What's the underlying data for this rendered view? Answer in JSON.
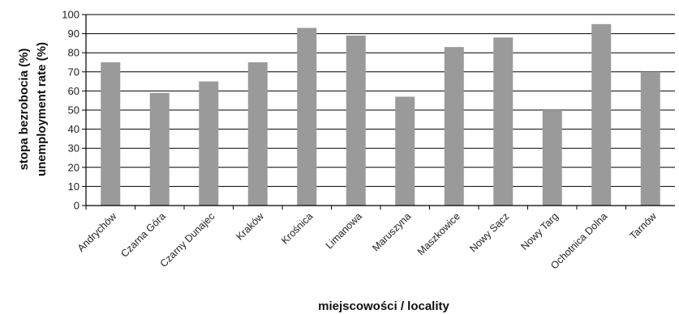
{
  "chart_data": {
    "type": "bar",
    "categories": [
      "Andrychów",
      "Czarna Góra",
      "Czarny Dunajec",
      "Kraków",
      "Krośnica",
      "Limanowa",
      "Maruszyna",
      "Maszkowice",
      "Nowy Sącz",
      "Nowy Targ",
      "Ochotnica Dolna",
      "Tarnów"
    ],
    "values": [
      75,
      59,
      65,
      75,
      93,
      89,
      57,
      83,
      88,
      50,
      95,
      70
    ],
    "ylabel_line1": "stopa bezrobocia (%)",
    "ylabel_line2": "unemployment rate (%)",
    "xlabel": "miejscowości / locality",
    "ylim": [
      0,
      100
    ],
    "yticks": [
      0,
      10,
      20,
      30,
      40,
      50,
      60,
      70,
      80,
      90,
      100
    ],
    "grid": true,
    "bar_color": "#9a9a9a"
  }
}
